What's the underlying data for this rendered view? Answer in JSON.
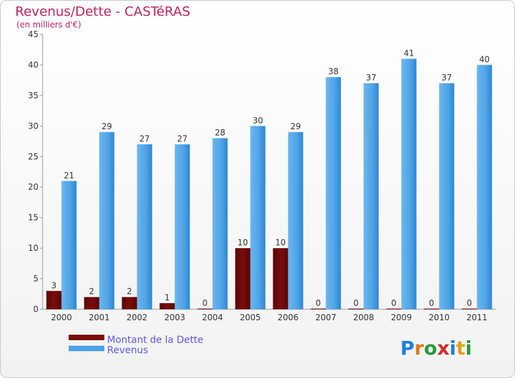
{
  "chart_data": {
    "type": "bar",
    "title": "Revenus/Dette - CASTéRAS",
    "subtitle": "(en milliers d'€)",
    "categories": [
      "2000",
      "2001",
      "2002",
      "2003",
      "2004",
      "2005",
      "2006",
      "2007",
      "2008",
      "2009",
      "2010",
      "2011"
    ],
    "series": [
      {
        "name": "Montant de la Dette",
        "color": "#7a0c0c",
        "values": [
          3,
          2,
          2,
          1,
          0,
          10,
          10,
          0,
          0,
          0,
          0,
          0
        ]
      },
      {
        "name": "Revenus",
        "color": "#4ea3e6",
        "values": [
          21,
          29,
          27,
          27,
          28,
          30,
          29,
          38,
          37,
          41,
          37,
          40
        ]
      }
    ],
    "ylim": [
      0,
      45
    ],
    "yticks": [
      0,
      5,
      10,
      15,
      20,
      25,
      30,
      35,
      40,
      45
    ],
    "grid": false,
    "legend": "bottom-left"
  },
  "logo": {
    "letters": [
      "P",
      "r",
      "o",
      "x",
      "i",
      "t",
      "i"
    ],
    "colors": [
      "#1f7fd6",
      "#e07a1a",
      "#2a9a3a",
      "#d62a2a",
      "#1f7fd6",
      "#e0a01a",
      "#2a9a3a"
    ]
  }
}
